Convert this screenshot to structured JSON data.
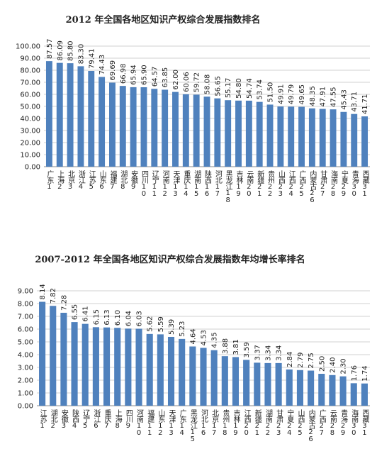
{
  "chart_data": [
    {
      "type": "bar",
      "title": "2012 年全国各地区知识产权综合发展指数排名",
      "color": "#4f81bd",
      "grid": true,
      "categories": [
        "广东1",
        "上海2",
        "北京3",
        "浙江4",
        "江苏5",
        "山东6",
        "福建7",
        "湖北8",
        "安徽9",
        "四川10",
        "辽宁11",
        "河南12",
        "天津13",
        "重庆14",
        "湖南15",
        "陕西16",
        "河北17",
        "黑龙江18",
        "吉林19",
        "云南20",
        "新疆21",
        "贵州22",
        "山西23",
        "江西24",
        "广西25",
        "内蒙古26",
        "甘肃27",
        "海南28",
        "宁夏29",
        "青海30",
        "西藏31"
      ],
      "values": [
        87.57,
        86.09,
        85.8,
        83.3,
        79.41,
        74.43,
        69.69,
        66.98,
        65.94,
        65.9,
        64.57,
        63.85,
        62.0,
        60.06,
        59.72,
        58.08,
        56.65,
        55.17,
        54.8,
        54.74,
        53.74,
        51.5,
        49.91,
        49.79,
        49.65,
        48.35,
        47.91,
        47.55,
        45.43,
        43.71,
        41.71
      ],
      "value_labels": [
        "87.57",
        "86.09",
        "85.80",
        "83.30",
        "79.41",
        "74.43",
        "69.69",
        "66.98",
        "65.94",
        "65.90",
        "64.57",
        "63.85",
        "62.00",
        "60.06",
        "59.72",
        "58.08",
        "56.65",
        "55.17",
        "54.80",
        "54.74",
        "53.74",
        "51.50",
        "49.91",
        "49.79",
        "49.65",
        "48.35",
        "47.91",
        "47.55",
        "45.43",
        "43.71",
        "41.71"
      ],
      "ylim": [
        0,
        100
      ],
      "yticks": [
        {
          "value": 0,
          "label": "0.00"
        },
        {
          "value": 10,
          "label": "10.00"
        },
        {
          "value": 20,
          "label": "20.00"
        },
        {
          "value": 30,
          "label": "30.00"
        },
        {
          "value": 40,
          "label": "40.00"
        },
        {
          "value": 50,
          "label": "50.00"
        },
        {
          "value": 60,
          "label": "60.00"
        },
        {
          "value": 70,
          "label": "70.00"
        },
        {
          "value": 80,
          "label": "80.00"
        },
        {
          "value": 90,
          "label": "90.00"
        },
        {
          "value": 100,
          "label": "100.00"
        }
      ]
    },
    {
      "type": "bar",
      "title": "2007-2012 年全国各地区知识产权综合发展指数年均增长率排名",
      "color": "#4f81bd",
      "grid": true,
      "categories": [
        "江苏1",
        "湖北2",
        "安徽3",
        "陕西4",
        "辽宁5",
        "浙江6",
        "重庆7",
        "上海8",
        "四川9",
        "河南10",
        "福建11",
        "山东12",
        "天津13",
        "广东14",
        "黑龙江15",
        "河北16",
        "北京17",
        "贵州18",
        "吉林19",
        "江西20",
        "新疆21",
        "湖南22",
        "甘肃23",
        "宁夏24",
        "山西25",
        "内蒙古26",
        "广西27",
        "云南28",
        "青海29",
        "海南30",
        "西藏31"
      ],
      "values": [
        8.14,
        7.82,
        7.28,
        6.55,
        6.41,
        6.15,
        6.13,
        6.1,
        6.04,
        6.03,
        5.62,
        5.59,
        5.39,
        5.23,
        4.64,
        4.53,
        4.35,
        3.88,
        3.81,
        3.59,
        3.37,
        3.34,
        3.34,
        2.84,
        2.79,
        2.75,
        2.5,
        2.4,
        2.3,
        1.76,
        1.74
      ],
      "value_labels": [
        "8.14",
        "7.82",
        "7.28",
        "6.55",
        "6.41",
        "6.15",
        "6.13",
        "6.10",
        "6.04",
        "6.03",
        "5.62",
        "5.59",
        "5.39",
        "5.23",
        "4.64",
        "4.53",
        "4.35",
        "3.88",
        "3.81",
        "3.59",
        "3.37",
        "3.34",
        "3.34",
        "2.84",
        "2.79",
        "2.75",
        "2.50",
        "2.40",
        "2.30",
        "1.76",
        "1.74"
      ],
      "ylim": [
        0,
        9
      ],
      "yticks": [
        {
          "value": 0,
          "label": "0.00"
        },
        {
          "value": 1,
          "label": "1.00"
        },
        {
          "value": 2,
          "label": "2.00"
        },
        {
          "value": 3,
          "label": "3.00"
        },
        {
          "value": 4,
          "label": "4.00"
        },
        {
          "value": 5,
          "label": "5.00"
        },
        {
          "value": 6,
          "label": "6.00"
        },
        {
          "value": 7,
          "label": "7.00"
        },
        {
          "value": 8,
          "label": "8.00"
        },
        {
          "value": 9,
          "label": "9.00"
        }
      ]
    }
  ]
}
